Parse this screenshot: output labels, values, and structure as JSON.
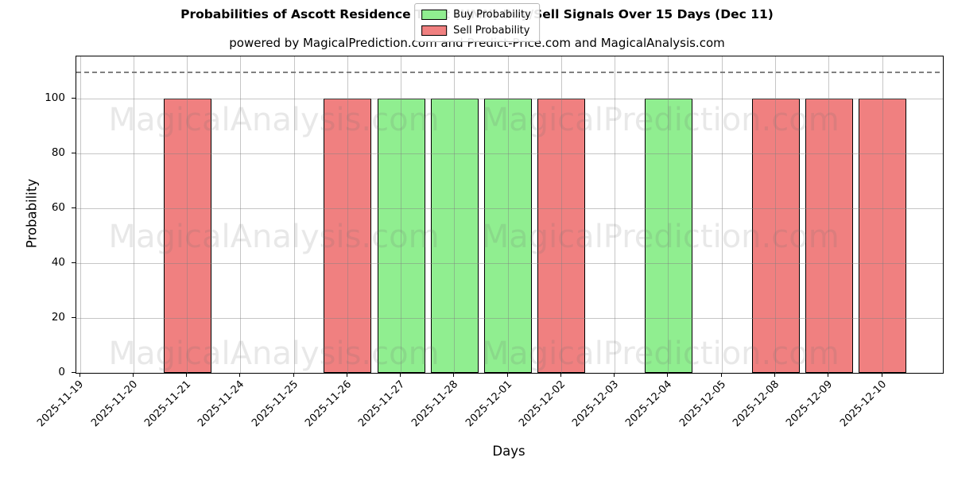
{
  "figure": {
    "title": "Probabilities of Ascott Residence Trust (HMN) Buy/Sell Signals Over 15 Days (Dec 11)",
    "subtitle": "powered by MagicalPrediction.com and Predict-Price.com and MagicalAnalysis.com"
  },
  "watermarks": {
    "left_text": "MagicalAnalysis.com",
    "right_text": "MagicalPrediction.com"
  },
  "colors": {
    "buy": "#90EE90",
    "sell": "#F08080",
    "bar_edge": "#000000",
    "grid": "#c8c8c8",
    "threshold_line": "#808080",
    "background": "#ffffff"
  },
  "chart_data": {
    "type": "bar",
    "title": "Probabilities of Ascott Residence Trust (HMN) Buy/Sell Signals Over 15 Days (Dec 11)",
    "subtitle": "powered by MagicalPrediction.com and Predict-Price.com and MagicalAnalysis.com",
    "xlabel": "Days",
    "ylabel": "Probability",
    "ylim": [
      0,
      115.5
    ],
    "yticks": [
      0,
      20,
      40,
      60,
      80,
      100
    ],
    "threshold_line_y": 110,
    "grid": true,
    "legend_position": "upper center",
    "categories": [
      "2025-11-19",
      "2025-11-20",
      "2025-11-21",
      "2025-11-24",
      "2025-11-25",
      "2025-11-26",
      "2025-11-27",
      "2025-11-28",
      "2025-12-01",
      "2025-12-02",
      "2025-12-03",
      "2025-12-04",
      "2025-12-05",
      "2025-12-08",
      "2025-12-09",
      "2025-12-10"
    ],
    "series": [
      {
        "name": "Buy Probability",
        "color": "#90EE90",
        "values": [
          0,
          0,
          0,
          0,
          0,
          0,
          100,
          100,
          100,
          0,
          0,
          100,
          0,
          0,
          0,
          0
        ]
      },
      {
        "name": "Sell Probability",
        "color": "#F08080",
        "values": [
          0,
          0,
          100,
          0,
          0,
          100,
          0,
          0,
          0,
          100,
          0,
          0,
          0,
          100,
          100,
          100
        ]
      }
    ]
  }
}
